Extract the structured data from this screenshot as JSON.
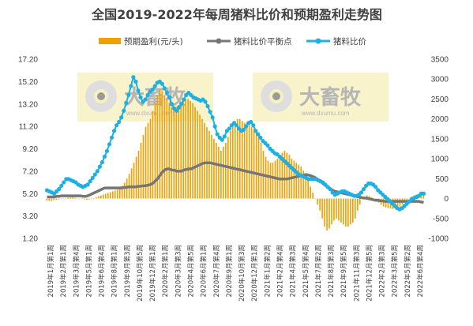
{
  "chart_data": {
    "type": "bar+line",
    "title": "全国2019-2022年每周猪料比价和预期盈利走势图",
    "legend_position": "top",
    "grid": false,
    "colors": {
      "profit": "#f0a000",
      "breakeven": "#767676",
      "ratio": "#1cb0e4"
    },
    "left_axis": {
      "ylim": [
        1.2,
        17.2
      ],
      "ticks": [
        "17.20",
        "15.20",
        "13.20",
        "11.20",
        "9.20",
        "7.20",
        "5.20",
        "3.20",
        "1.20"
      ]
    },
    "right_axis": {
      "ylim": [
        -1000,
        3500
      ],
      "ticks": [
        "3500",
        "3000",
        "2500",
        "2000",
        "1500",
        "1000",
        "500",
        "0",
        "-500",
        "-1000"
      ]
    },
    "x_labels": [
      "2019年1月第1周",
      "2019年2月第1周",
      "2019年3月第4周",
      "2019年5月第1周",
      "2019年6月第4周",
      "2019年8月第1周",
      "2019年9月第3周",
      "2019年10月第5周",
      "2019年12月第1周",
      "2020年2月第1周",
      "2020年3月第3周",
      "2020年4月第5周",
      "2020年6月第1周",
      "2020年7月第4周",
      "2020年9月第1周",
      "2020年10月第3周",
      "2020年12月第1周",
      "2021年1月第2周",
      "2021年2月第4周",
      "2021年4月第3周",
      "2021年5月第4周",
      "2021年7月第2周",
      "2021年8月第3周",
      "2021年9月第5周",
      "2021年11月第3周",
      "2021年12月第5周",
      "2022年2月第3周",
      "2022年3月第5周",
      "2022年5月第2周",
      "2022年6月第4周"
    ],
    "series": [
      {
        "name": "预期盈利(元/头)",
        "axis": "right",
        "kind": "bar",
        "values": [
          -50,
          -55,
          -60,
          -40,
          -30,
          -20,
          -10,
          0,
          10,
          20,
          30,
          40,
          20,
          10,
          0,
          -10,
          -20,
          -30,
          -20,
          -10,
          0,
          30,
          60,
          80,
          100,
          120,
          140,
          160,
          180,
          200,
          220,
          260,
          320,
          400,
          500,
          620,
          760,
          900,
          1050,
          1200,
          1400,
          1600,
          1800,
          1900,
          2000,
          2200,
          2400,
          2600,
          2750,
          2700,
          2600,
          2500,
          2400,
          2300,
          2250,
          2300,
          2350,
          2400,
          2450,
          2500,
          2500,
          2450,
          2400,
          2300,
          2200,
          2100,
          2000,
          1900,
          1800,
          1700,
          1600,
          1500,
          1400,
          1300,
          1200,
          1300,
          1400,
          1550,
          1700,
          1850,
          1950,
          2000,
          2000,
          1950,
          1900,
          1900,
          1850,
          1800,
          1750,
          1700,
          1600,
          1400,
          1200,
          1050,
          950,
          900,
          900,
          950,
          1000,
          1100,
          1150,
          1200,
          1150,
          1100,
          1000,
          950,
          900,
          850,
          800,
          700,
          600,
          450,
          300,
          150,
          0,
          -150,
          -300,
          -500,
          -700,
          -800,
          -750,
          -650,
          -550,
          -500,
          -550,
          -600,
          -650,
          -700,
          -700,
          -650,
          -600,
          -500,
          -300,
          -150,
          0,
          50,
          80,
          60,
          30,
          0,
          -50,
          -100,
          -150,
          -200,
          -220,
          -240,
          -250,
          -260,
          -250,
          -220,
          -200,
          -150,
          -100,
          -50,
          0,
          50,
          80,
          100,
          120,
          150,
          150
        ]
      },
      {
        "name": "猪料比价平衡点",
        "axis": "left",
        "kind": "line",
        "values": [
          4.9,
          4.9,
          4.9,
          4.9,
          4.95,
          4.95,
          5.0,
          5.0,
          5.0,
          5.0,
          5.0,
          5.0,
          5.0,
          5.0,
          5.0,
          4.95,
          4.95,
          5.0,
          5.1,
          5.2,
          5.3,
          5.4,
          5.5,
          5.6,
          5.7,
          5.7,
          5.7,
          5.7,
          5.7,
          5.7,
          5.7,
          5.7,
          5.75,
          5.75,
          5.8,
          5.8,
          5.8,
          5.8,
          5.85,
          5.85,
          5.9,
          5.9,
          5.95,
          6.0,
          6.1,
          6.3,
          6.5,
          6.8,
          7.1,
          7.3,
          7.4,
          7.4,
          7.3,
          7.3,
          7.2,
          7.2,
          7.2,
          7.3,
          7.35,
          7.4,
          7.4,
          7.5,
          7.6,
          7.7,
          7.8,
          7.9,
          7.95,
          7.95,
          7.95,
          7.9,
          7.85,
          7.8,
          7.75,
          7.7,
          7.65,
          7.6,
          7.55,
          7.5,
          7.45,
          7.4,
          7.35,
          7.3,
          7.25,
          7.2,
          7.15,
          7.1,
          7.05,
          7.0,
          6.95,
          6.9,
          6.85,
          6.8,
          6.75,
          6.7,
          6.65,
          6.6,
          6.55,
          6.5,
          6.5,
          6.5,
          6.5,
          6.55,
          6.6,
          6.65,
          6.7,
          6.75,
          6.8,
          6.85,
          6.9,
          6.85,
          6.8,
          6.7,
          6.6,
          6.45,
          6.3,
          6.1,
          5.95,
          5.8,
          5.65,
          5.5,
          5.4,
          5.35,
          5.3,
          5.25,
          5.2,
          5.15,
          5.1,
          5.05,
          5.0,
          4.95,
          4.9,
          4.85,
          4.8,
          4.8,
          4.75,
          4.7,
          4.65,
          4.6,
          4.6,
          4.55,
          4.55,
          4.5,
          4.5,
          4.5,
          4.5,
          4.5,
          4.5,
          4.5,
          4.5,
          4.5,
          4.5,
          4.5,
          4.5,
          4.5,
          4.5,
          4.5,
          4.45,
          4.4
        ]
      },
      {
        "name": "猪料比价",
        "axis": "left",
        "kind": "line-marker",
        "values": [
          5.5,
          5.4,
          5.3,
          5.2,
          5.4,
          5.6,
          5.9,
          6.2,
          6.5,
          6.5,
          6.4,
          6.3,
          6.2,
          6.0,
          5.9,
          5.8,
          5.9,
          6.0,
          6.3,
          6.6,
          6.9,
          7.2,
          7.6,
          8.0,
          8.5,
          9.0,
          9.6,
          10.2,
          10.8,
          11.3,
          11.6,
          12.0,
          12.6,
          13.3,
          14.0,
          14.8,
          15.6,
          15.2,
          14.4,
          13.8,
          13.4,
          13.6,
          14.0,
          14.3,
          14.5,
          14.8,
          15.1,
          15.2,
          15.0,
          14.6,
          14.2,
          13.8,
          13.2,
          12.8,
          12.6,
          12.9,
          13.2,
          13.6,
          14.0,
          14.2,
          14.0,
          13.8,
          13.7,
          13.6,
          13.5,
          13.6,
          13.4,
          13.0,
          12.5,
          12.0,
          11.2,
          10.5,
          10.2,
          10.0,
          10.3,
          10.8,
          11.0,
          11.3,
          11.5,
          11.3,
          11.0,
          10.8,
          10.9,
          11.2,
          11.5,
          11.6,
          11.3,
          10.8,
          10.5,
          10.2,
          9.9,
          9.7,
          9.5,
          9.2,
          9.0,
          8.8,
          8.7,
          8.5,
          8.3,
          8.1,
          7.9,
          7.7,
          7.5,
          7.3,
          7.1,
          6.9,
          6.8,
          6.7,
          6.6,
          6.5,
          6.5,
          6.5,
          6.5,
          6.4,
          6.3,
          6.2,
          6.0,
          5.8,
          5.6,
          5.3,
          5.1,
          5.2,
          5.3,
          5.4,
          5.4,
          5.3,
          5.2,
          5.1,
          5.0,
          5.0,
          5.1,
          5.3,
          5.6,
          5.9,
          6.1,
          6.1,
          6.0,
          5.8,
          5.5,
          5.3,
          5.1,
          4.9,
          4.7,
          4.5,
          4.3,
          4.1,
          3.9,
          3.8,
          3.9,
          4.1,
          4.3,
          4.5,
          4.7,
          4.8,
          4.9,
          5.0,
          5.2,
          5.2
        ]
      }
    ]
  },
  "watermark": {
    "logo_text": "大畜牧",
    "sub_text": "www.dxumu.com"
  }
}
